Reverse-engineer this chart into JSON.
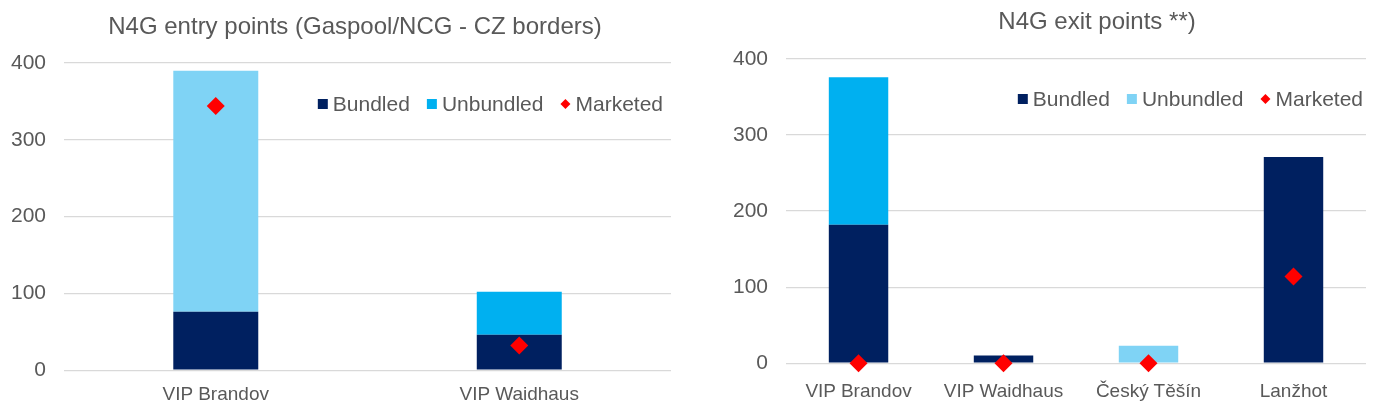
{
  "chart_data": [
    {
      "type": "bar",
      "title": "N4G entry points (Gaspool/NCG - CZ borders)",
      "categories": [
        "VIP Brandov",
        "VIP Waidhaus"
      ],
      "stacked": true,
      "series": [
        {
          "name": "Bundled",
          "color": "#002060",
          "values": [
            76,
            46
          ]
        },
        {
          "name": "Unbundled",
          "color": "#00b0f0",
          "colors": [
            "#7fd3f5",
            "#00b0f0"
          ],
          "values": [
            314,
            56
          ]
        },
        {
          "name": "Marketed",
          "type": "scatter",
          "color": "#ff0000",
          "x": [
            "VIP Brandov",
            "VIP Waidhaus"
          ],
          "values": [
            344,
            32
          ]
        }
      ],
      "ylim": [
        0,
        400
      ],
      "yticks": [
        0,
        100,
        200,
        300,
        400
      ],
      "grid": "y",
      "legend": "top right",
      "marker": "diamond"
    },
    {
      "type": "bar",
      "title": "N4G exit points **)",
      "categories": [
        "VIP Brandov",
        "VIP Waidhaus",
        "Český Těšín",
        "Lanžhot"
      ],
      "stacked": true,
      "series": [
        {
          "name": "Bundled",
          "color": "#002060",
          "values": [
            182,
            10,
            null,
            271
          ]
        },
        {
          "name": "Unbundled",
          "color": "#7fd3f5",
          "colors": [
            "#00b0f0",
            "#00b0f0",
            "#7fd3f5",
            "#00b0f0"
          ],
          "values": [
            194,
            null,
            23,
            null
          ]
        },
        {
          "name": "Marketed",
          "type": "scatter",
          "color": "#ff0000",
          "x": [
            "VIP Brandov",
            "VIP Waidhaus",
            "Český Těšín",
            "Lanžhot"
          ],
          "values": [
            0,
            0,
            0,
            114
          ]
        }
      ],
      "ylim": [
        0,
        400
      ],
      "yticks": [
        0,
        100,
        200,
        300,
        400
      ],
      "grid": "y",
      "legend": "top right",
      "marker": "diamond"
    }
  ]
}
